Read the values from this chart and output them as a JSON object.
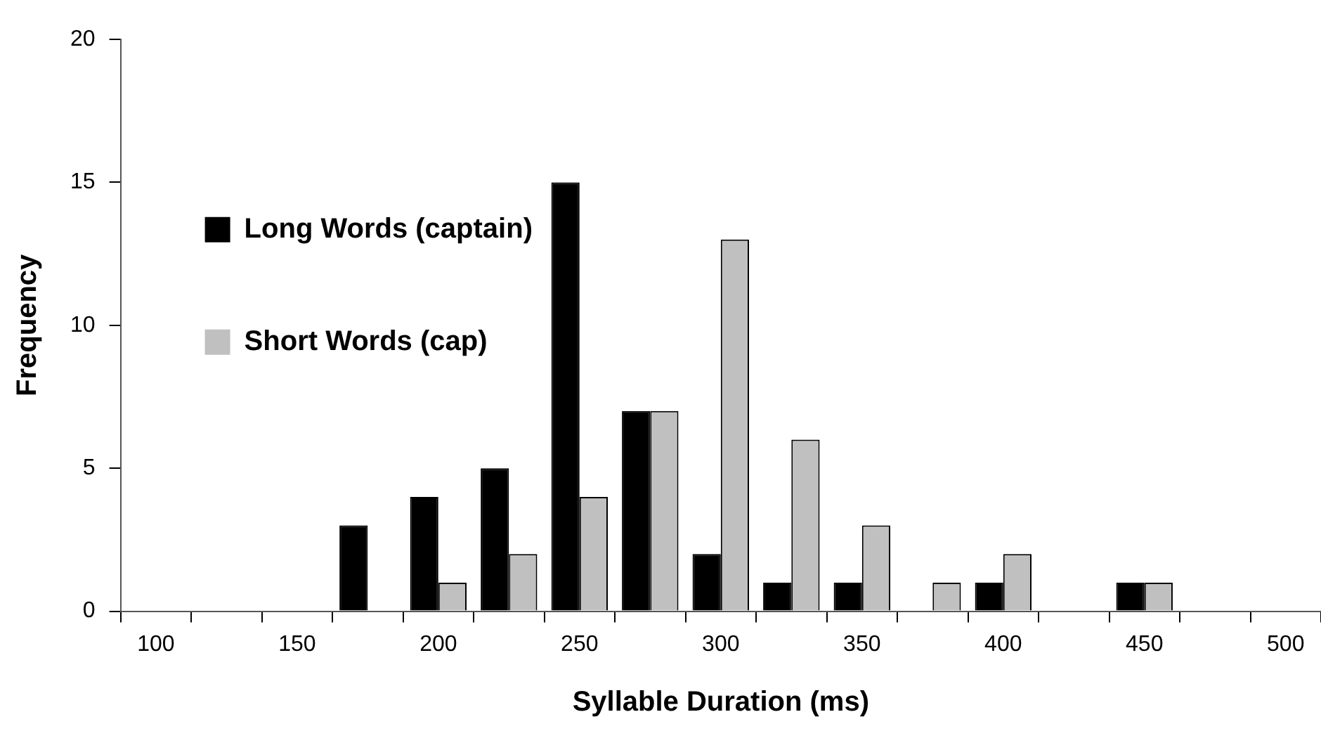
{
  "chart_data": {
    "type": "bar",
    "xlabel": "Syllable Duration (ms)",
    "ylabel": "Frequency",
    "categories": [
      "100",
      null,
      "150",
      null,
      "200",
      null,
      "250",
      null,
      "300",
      null,
      "350",
      null,
      "400",
      null,
      "450",
      null,
      "500"
    ],
    "series": [
      {
        "name": "Long Words (captain)",
        "color": "#000000",
        "values": [
          0,
          0,
          0,
          3,
          4,
          5,
          15,
          7,
          2,
          1,
          1,
          0,
          1,
          0,
          1,
          0,
          0
        ]
      },
      {
        "name": "Short Words (cap)",
        "color": "#c0c0c0",
        "values": [
          0,
          0,
          0,
          0,
          1,
          2,
          4,
          7,
          13,
          6,
          3,
          1,
          2,
          0,
          1,
          0,
          0
        ]
      }
    ],
    "ylim": [
      0,
      20
    ],
    "yticks": [
      0,
      5,
      10,
      15,
      20
    ],
    "grid": false,
    "legend": "top"
  }
}
